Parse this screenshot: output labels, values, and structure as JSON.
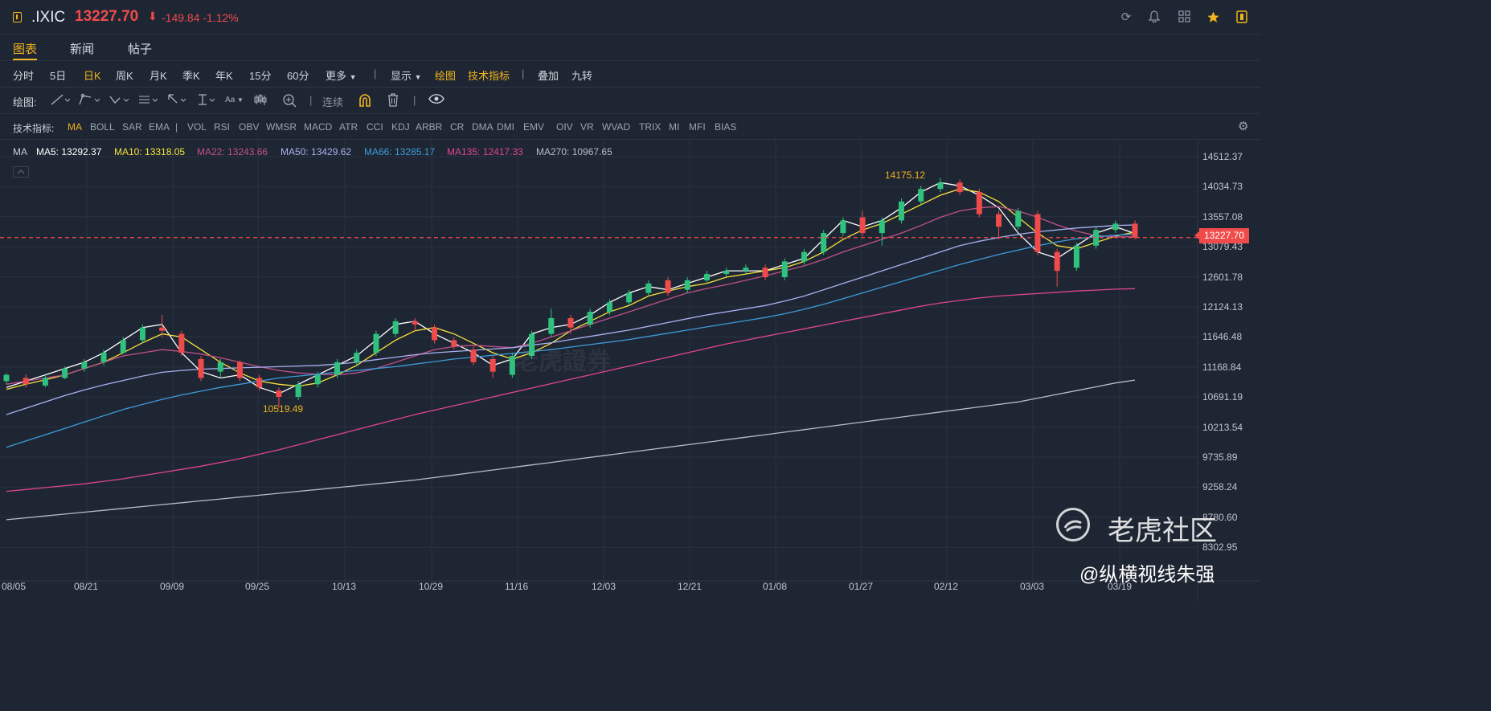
{
  "header": {
    "symbol": ".IXIC",
    "price": "13227.70",
    "arrow": "⬇",
    "change": "-149.84",
    "change_pct": "-1.12%",
    "icons": [
      "refresh-icon",
      "bell-icon",
      "grid-icon",
      "star-icon",
      "panel-icon"
    ]
  },
  "tabs": [
    {
      "label": "图表",
      "active": true
    },
    {
      "label": "新闻",
      "active": false
    },
    {
      "label": "帖子",
      "active": false
    }
  ],
  "periods": {
    "items": [
      "分时",
      "5日",
      "日K",
      "周K",
      "月K",
      "季K",
      "年K",
      "15分",
      "60分",
      "更多"
    ],
    "active": "日K",
    "display": "显示",
    "draw": "绘图",
    "indicators": "技术指标",
    "overlay": "叠加",
    "nine": "九转"
  },
  "drawbar": {
    "label": "绘图:",
    "continuous": "连续",
    "text_tool": "Aa"
  },
  "indicator_bar": {
    "label": "技术指标:",
    "items": [
      "MA",
      "BOLL",
      "SAR",
      "EMA",
      "|",
      "VOL",
      "RSI",
      "OBV",
      "WMSR",
      "MACD",
      "ATR",
      "CCI",
      "KDJ",
      "ARBR",
      "CR",
      "DMA",
      "DMI",
      "EMV",
      "OIV",
      "VR",
      "WVAD",
      "TRIX",
      "MI",
      "MFI",
      "BIAS"
    ],
    "active": "MA"
  },
  "ma_legend": {
    "title": "MA",
    "items": [
      {
        "label": "MA5: 13292.37",
        "color": "#ffffff"
      },
      {
        "label": "MA10: 13318.05",
        "color": "#f5e13c"
      },
      {
        "label": "MA22: 13243.66",
        "color": "#c0508a"
      },
      {
        "label": "MA50: 13429.62",
        "color": "#a8b0f0"
      },
      {
        "label": "MA66: 13285.17",
        "color": "#3c9bd8"
      },
      {
        "label": "MA135: 12417.33",
        "color": "#e04590"
      },
      {
        "label": "MA270: 10967.65",
        "color": "#b8bcc4"
      }
    ]
  },
  "y_axis": [
    "14512.37",
    "14034.73",
    "13557.08",
    "13079.43",
    "12601.78",
    "12124.13",
    "11646.48",
    "11168.84",
    "10691.19",
    "10213.54",
    "9735.89",
    "9258.24",
    "8780.60",
    "8302.95"
  ],
  "x_axis": [
    "08/05",
    "08/21",
    "09/09",
    "09/25",
    "10/13",
    "10/29",
    "11/16",
    "12/03",
    "12/21",
    "01/08",
    "01/27",
    "02/12",
    "03/03",
    "03/19"
  ],
  "current_price_tag": "13227.70",
  "markers": {
    "high": "14175.12",
    "low": "10519.49"
  },
  "watermarks": {
    "center": "老虎證券",
    "brand": "老虎社区",
    "author": "@纵横视线朱强"
  },
  "chart_data": {
    "type": "candlestick",
    "current_price": 13227.7,
    "ylim": [
      8302.95,
      14512.37
    ],
    "x_ticks": [
      "08/05",
      "08/21",
      "09/09",
      "09/25",
      "10/13",
      "10/29",
      "11/16",
      "12/03",
      "12/21",
      "01/08",
      "01/27",
      "02/12",
      "03/03",
      "03/19"
    ],
    "annotations": {
      "high": 14175.12,
      "low": 10519.49
    },
    "ma_series": [
      {
        "name": "MA5",
        "color": "#ffffff",
        "values": [
          10850,
          10950,
          11050,
          11150,
          11250,
          11400,
          11600,
          11800,
          11850,
          11400,
          11100,
          11000,
          11050,
          10850,
          10750,
          10900,
          11050,
          11200,
          11350,
          11600,
          11850,
          11900,
          11700,
          11550,
          11400,
          11200,
          11300,
          11700,
          11800,
          11850,
          12000,
          12200,
          12350,
          12450,
          12400,
          12500,
          12600,
          12700,
          12700,
          12700,
          12800,
          12900,
          13200,
          13500,
          13400,
          13500,
          13700,
          13950,
          14100,
          14050,
          13900,
          13700,
          13300,
          13000,
          12900,
          13100,
          13300,
          13400,
          13292
        ]
      },
      {
        "name": "MA10",
        "color": "#f5e13c",
        "values": [
          10820,
          10900,
          10970,
          11050,
          11150,
          11250,
          11400,
          11560,
          11700,
          11650,
          11450,
          11250,
          11080,
          10950,
          10900,
          10870,
          10920,
          11050,
          11200,
          11400,
          11600,
          11750,
          11800,
          11700,
          11550,
          11400,
          11300,
          11400,
          11550,
          11750,
          11900,
          12050,
          12150,
          12300,
          12380,
          12450,
          12500,
          12600,
          12650,
          12700,
          12750,
          12850,
          13000,
          13200,
          13350,
          13450,
          13600,
          13750,
          13900,
          14000,
          13950,
          13800,
          13550,
          13300,
          13100,
          13050,
          13150,
          13250,
          13318
        ]
      },
      {
        "name": "MA22",
        "color": "#c0508a",
        "values": [
          10900,
          10950,
          11000,
          11050,
          11150,
          11250,
          11350,
          11400,
          11450,
          11420,
          11380,
          11320,
          11250,
          11180,
          11120,
          11080,
          11060,
          11050,
          11080,
          11150,
          11250,
          11350,
          11450,
          11500,
          11520,
          11500,
          11480,
          11550,
          11650,
          11750,
          11850,
          11950,
          12050,
          12150,
          12250,
          12350,
          12420,
          12480,
          12550,
          12620,
          12700,
          12780,
          12880,
          13000,
          13100,
          13200,
          13300,
          13420,
          13550,
          13650,
          13700,
          13720,
          13650,
          13550,
          13430,
          13330,
          13260,
          13240,
          13243
        ]
      },
      {
        "name": "MA50",
        "color": "#a8b0f0",
        "values": [
          10420,
          10520,
          10620,
          10720,
          10810,
          10890,
          10960,
          11030,
          11090,
          11120,
          11140,
          11150,
          11160,
          11170,
          11180,
          11190,
          11200,
          11220,
          11250,
          11290,
          11330,
          11370,
          11400,
          11420,
          11440,
          11460,
          11480,
          11520,
          11560,
          11610,
          11660,
          11710,
          11760,
          11820,
          11880,
          11940,
          12000,
          12050,
          12100,
          12150,
          12220,
          12300,
          12400,
          12500,
          12600,
          12700,
          12800,
          12900,
          13000,
          13100,
          13170,
          13230,
          13280,
          13320,
          13350,
          13380,
          13400,
          13420,
          13429
        ]
      },
      {
        "name": "MA66",
        "color": "#3c9bd8",
        "values": [
          9900,
          10000,
          10100,
          10200,
          10300,
          10400,
          10500,
          10580,
          10660,
          10730,
          10790,
          10850,
          10900,
          10950,
          11000,
          11030,
          11060,
          11090,
          11120,
          11150,
          11180,
          11220,
          11260,
          11300,
          11330,
          11360,
          11390,
          11420,
          11450,
          11490,
          11530,
          11570,
          11610,
          11660,
          11710,
          11760,
          11810,
          11860,
          11910,
          11960,
          12020,
          12090,
          12170,
          12260,
          12350,
          12440,
          12530,
          12620,
          12710,
          12800,
          12880,
          12960,
          13030,
          13100,
          13160,
          13210,
          13240,
          13265,
          13285
        ]
      },
      {
        "name": "MA135",
        "color": "#e04590",
        "values": [
          9200,
          9230,
          9260,
          9290,
          9320,
          9360,
          9400,
          9450,
          9500,
          9550,
          9600,
          9660,
          9720,
          9790,
          9860,
          9940,
          10020,
          10100,
          10180,
          10260,
          10340,
          10420,
          10490,
          10560,
          10630,
          10700,
          10770,
          10840,
          10910,
          10980,
          11050,
          11120,
          11190,
          11260,
          11330,
          11400,
          11470,
          11540,
          11600,
          11660,
          11720,
          11780,
          11840,
          11900,
          11960,
          12020,
          12080,
          12140,
          12190,
          12230,
          12270,
          12300,
          12320,
          12340,
          12360,
          12380,
          12395,
          12410,
          12417
        ]
      },
      {
        "name": "MA270",
        "color": "#b8bcc4",
        "values": [
          8750,
          8780,
          8810,
          8840,
          8870,
          8900,
          8930,
          8960,
          8990,
          9020,
          9050,
          9080,
          9110,
          9140,
          9170,
          9200,
          9230,
          9260,
          9290,
          9320,
          9350,
          9380,
          9420,
          9460,
          9500,
          9540,
          9580,
          9620,
          9660,
          9700,
          9740,
          9780,
          9820,
          9860,
          9900,
          9940,
          9980,
          10020,
          10060,
          10100,
          10140,
          10180,
          10220,
          10260,
          10300,
          10340,
          10380,
          10420,
          10460,
          10500,
          10540,
          10580,
          10620,
          10680,
          10740,
          10800,
          10860,
          10920,
          10967
        ]
      }
    ],
    "candles": [
      [
        10950,
        11050,
        10900,
        11080
      ],
      [
        11000,
        10900,
        10850,
        11060
      ],
      [
        10880,
        11000,
        10850,
        11050
      ],
      [
        11000,
        11150,
        10980,
        11180
      ],
      [
        11150,
        11250,
        11100,
        11300
      ],
      [
        11250,
        11400,
        11200,
        11450
      ],
      [
        11400,
        11600,
        11380,
        11650
      ],
      [
        11600,
        11800,
        11550,
        11850
      ],
      [
        11800,
        11750,
        11650,
        12000
      ],
      [
        11700,
        11400,
        11350,
        11750
      ],
      [
        11300,
        11000,
        10950,
        11350
      ],
      [
        11100,
        11250,
        11000,
        11300
      ],
      [
        11250,
        11000,
        10950,
        11280
      ],
      [
        11000,
        10850,
        10800,
        11050
      ],
      [
        10800,
        10700,
        10520,
        10850
      ],
      [
        10700,
        10900,
        10650,
        10950
      ],
      [
        10900,
        11050,
        10850,
        11100
      ],
      [
        11050,
        11250,
        11000,
        11300
      ],
      [
        11250,
        11400,
        11200,
        11450
      ],
      [
        11400,
        11700,
        11350,
        11750
      ],
      [
        11700,
        11900,
        11650,
        11950
      ],
      [
        11900,
        11850,
        11750,
        11950
      ],
      [
        11800,
        11600,
        11550,
        11850
      ],
      [
        11600,
        11500,
        11450,
        11650
      ],
      [
        11450,
        11250,
        11200,
        11500
      ],
      [
        11300,
        11100,
        11000,
        11350
      ],
      [
        11050,
        11350,
        11000,
        11400
      ],
      [
        11350,
        11700,
        11300,
        11750
      ],
      [
        11700,
        11950,
        11650,
        12100
      ],
      [
        11950,
        11800,
        11700,
        12000
      ],
      [
        11850,
        12050,
        11800,
        12100
      ],
      [
        12050,
        12200,
        12000,
        12250
      ],
      [
        12200,
        12350,
        12150,
        12400
      ],
      [
        12350,
        12500,
        12300,
        12550
      ],
      [
        12550,
        12350,
        12300,
        12600
      ],
      [
        12400,
        12550,
        12350,
        12600
      ],
      [
        12550,
        12650,
        12500,
        12700
      ],
      [
        12650,
        12700,
        12600,
        12750
      ],
      [
        12700,
        12750,
        12650,
        12800
      ],
      [
        12750,
        12600,
        12550,
        12800
      ],
      [
        12600,
        12850,
        12550,
        12900
      ],
      [
        12850,
        13000,
        12800,
        13050
      ],
      [
        13000,
        13300,
        12950,
        13350
      ],
      [
        13300,
        13500,
        13250,
        13550
      ],
      [
        13550,
        13300,
        13250,
        13650
      ],
      [
        13300,
        13500,
        13100,
        13550
      ],
      [
        13500,
        13800,
        13450,
        13850
      ],
      [
        13800,
        14000,
        13750,
        14050
      ],
      [
        14000,
        14100,
        13950,
        14175
      ],
      [
        14100,
        13950,
        13900,
        14150
      ],
      [
        13950,
        13600,
        13550,
        14000
      ],
      [
        13600,
        13400,
        13200,
        13650
      ],
      [
        13400,
        13650,
        13350,
        13700
      ],
      [
        13600,
        13000,
        12950,
        13650
      ],
      [
        13000,
        12700,
        12450,
        13050
      ],
      [
        12750,
        13100,
        12700,
        13150
      ],
      [
        13100,
        13350,
        13050,
        13400
      ],
      [
        13350,
        13450,
        13300,
        13500
      ],
      [
        13450,
        13227,
        13200,
        13500
      ]
    ]
  }
}
